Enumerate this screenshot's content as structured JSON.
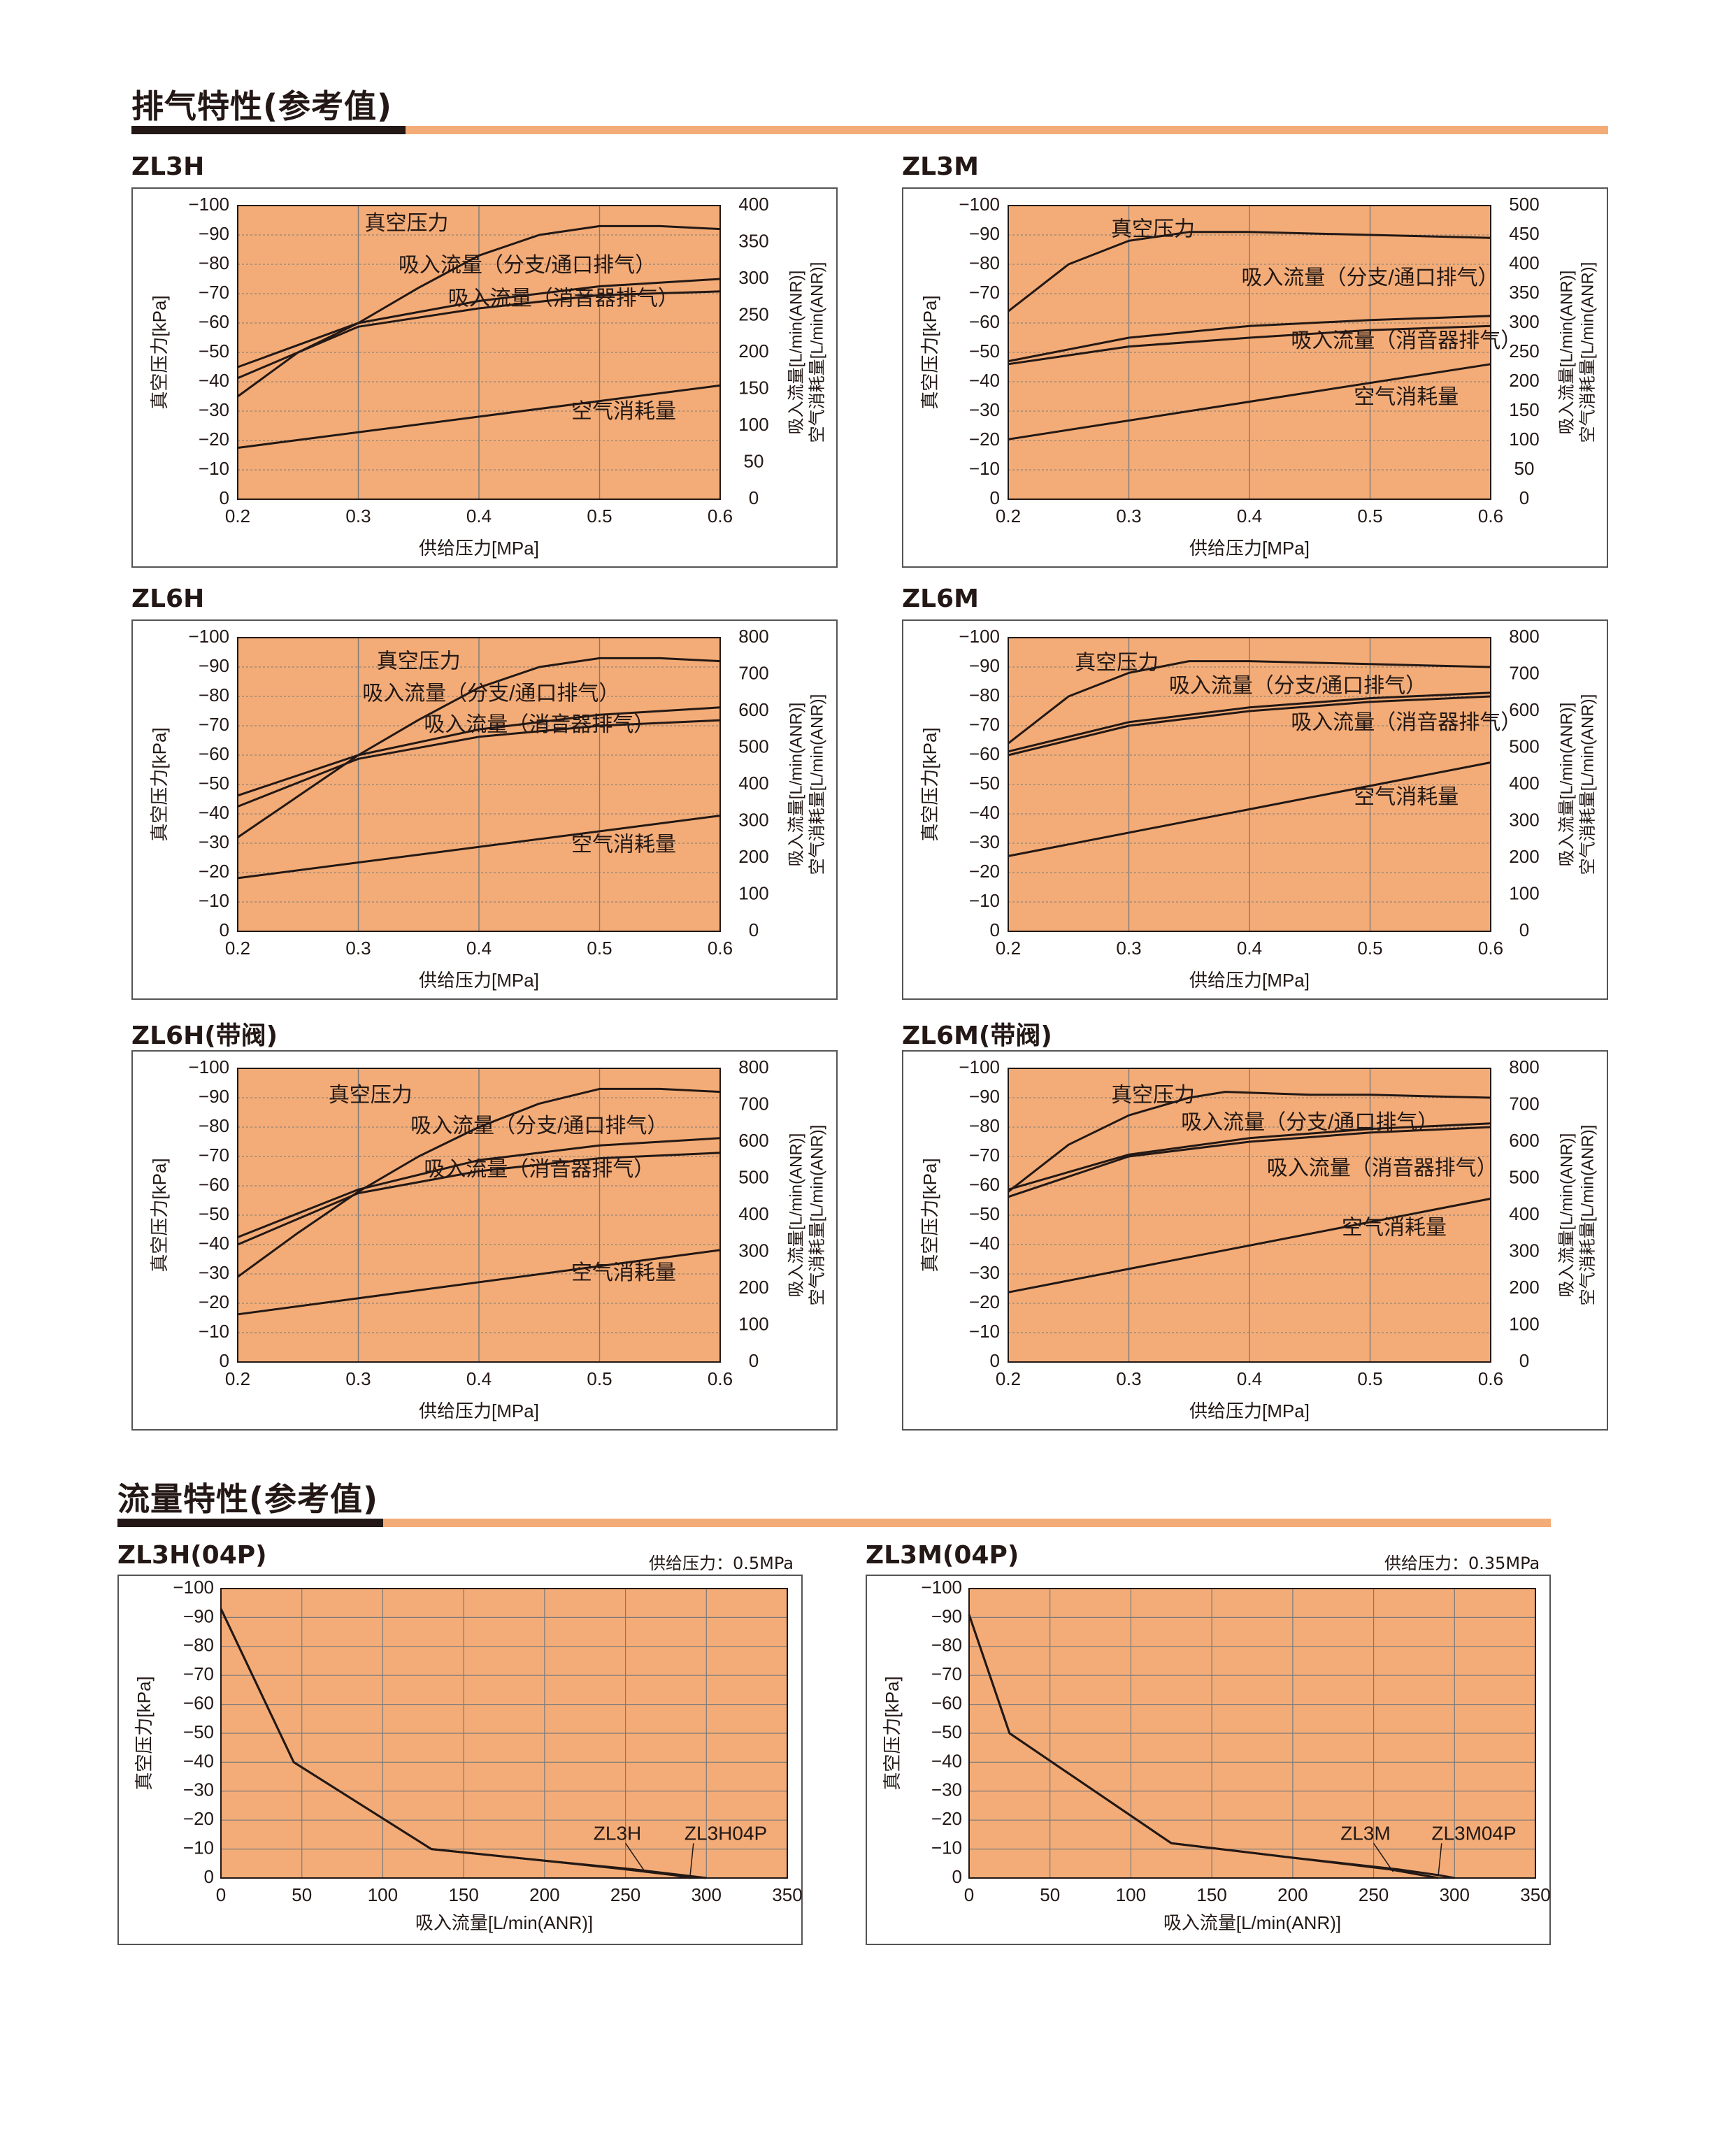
{
  "sections": {
    "exhaust_title": "排气特性(参考值)",
    "flow_title": "流量特性(参考值)"
  },
  "colors": {
    "plot_bg": "#f3ac77",
    "line": "#231815",
    "grid": "#7a7a7a",
    "accent_rule": "#f3ac77"
  },
  "chart_data": [
    {
      "id": "zl3h",
      "type": "line",
      "label": "ZL3H",
      "xlabel": "供给压力[MPa]",
      "ylabel": "真空压力[kPa]",
      "y2label_1": "吸入流量[L/min(ANR)]",
      "y2label_2": "空气消耗量[L/min(ANR)]",
      "x_ticks": [
        "0.2",
        "0.3",
        "0.4",
        "0.5",
        "0.6"
      ],
      "xlim": [
        0.2,
        0.6
      ],
      "y_ticks": [
        "−100",
        "−90",
        "−80",
        "−70",
        "−60",
        "−50",
        "−40",
        "−30",
        "−20",
        "−10",
        "0"
      ],
      "ylim": [
        0,
        100
      ],
      "y2_ticks": [
        "400",
        "350",
        "300",
        "250",
        "200",
        "150",
        "100",
        "50",
        "0"
      ],
      "y2lim": [
        0,
        400
      ],
      "series": [
        {
          "name": "真空压力",
          "axis": "left",
          "x": [
            0.2,
            0.25,
            0.3,
            0.35,
            0.4,
            0.45,
            0.5,
            0.55,
            0.6
          ],
          "y": [
            35,
            50,
            60,
            72,
            83,
            90,
            93,
            93,
            92
          ]
        },
        {
          "name": "吸入流量（分支/通口排气）",
          "axis": "right",
          "x": [
            0.2,
            0.3,
            0.4,
            0.5,
            0.6
          ],
          "y": [
            180,
            240,
            270,
            290,
            300
          ]
        },
        {
          "name": "吸入流量（消音器排气）",
          "axis": "right",
          "x": [
            0.2,
            0.3,
            0.4,
            0.5,
            0.6
          ],
          "y": [
            165,
            235,
            260,
            278,
            283
          ]
        },
        {
          "name": "空气消耗量",
          "axis": "right",
          "x": [
            0.2,
            0.6
          ],
          "y": [
            70,
            155
          ]
        }
      ]
    },
    {
      "id": "zl3m",
      "type": "line",
      "label": "ZL3M",
      "xlabel": "供给压力[MPa]",
      "ylabel": "真空压力[kPa]",
      "y2label_1": "吸入流量[L/min(ANR)]",
      "y2label_2": "空气消耗量[L/min(ANR)]",
      "x_ticks": [
        "0.2",
        "0.3",
        "0.4",
        "0.5",
        "0.6"
      ],
      "xlim": [
        0.2,
        0.6
      ],
      "y_ticks": [
        "−100",
        "−90",
        "−80",
        "−70",
        "−60",
        "−50",
        "−40",
        "−30",
        "−20",
        "−10",
        "0"
      ],
      "ylim": [
        0,
        100
      ],
      "y2_ticks": [
        "500",
        "450",
        "400",
        "350",
        "300",
        "250",
        "200",
        "150",
        "100",
        "50",
        "0"
      ],
      "y2lim": [
        0,
        500
      ],
      "series": [
        {
          "name": "真空压力",
          "axis": "left",
          "x": [
            0.2,
            0.25,
            0.3,
            0.35,
            0.4,
            0.5,
            0.6
          ],
          "y": [
            64,
            80,
            88,
            91,
            91,
            90,
            89
          ]
        },
        {
          "name": "吸入流量（分支/通口排气）",
          "axis": "right",
          "x": [
            0.2,
            0.3,
            0.4,
            0.5,
            0.6
          ],
          "y": [
            235,
            275,
            295,
            305,
            312
          ]
        },
        {
          "name": "吸入流量（消音器排气）",
          "axis": "right",
          "x": [
            0.2,
            0.3,
            0.4,
            0.5,
            0.6
          ],
          "y": [
            230,
            260,
            275,
            288,
            295
          ]
        },
        {
          "name": "空气消耗量",
          "axis": "right",
          "x": [
            0.2,
            0.6
          ],
          "y": [
            102,
            230
          ]
        }
      ]
    },
    {
      "id": "zl6h",
      "type": "line",
      "label": "ZL6H",
      "xlabel": "供给压力[MPa]",
      "ylabel": "真空压力[kPa]",
      "y2label_1": "吸入流量[L/min(ANR)]",
      "y2label_2": "空气消耗量[L/min(ANR)]",
      "x_ticks": [
        "0.2",
        "0.3",
        "0.4",
        "0.5",
        "0.6"
      ],
      "xlim": [
        0.2,
        0.6
      ],
      "y_ticks": [
        "−100",
        "−90",
        "−80",
        "−70",
        "−60",
        "−50",
        "−40",
        "−30",
        "−20",
        "−10",
        "0"
      ],
      "ylim": [
        0,
        100
      ],
      "y2_ticks": [
        "800",
        "700",
        "600",
        "500",
        "400",
        "300",
        "200",
        "100",
        "0"
      ],
      "y2lim": [
        0,
        800
      ],
      "series": [
        {
          "name": "真空压力",
          "axis": "left",
          "x": [
            0.2,
            0.25,
            0.3,
            0.35,
            0.4,
            0.45,
            0.5,
            0.55,
            0.6
          ],
          "y": [
            32,
            46,
            60,
            72,
            83,
            90,
            93,
            93,
            92
          ]
        },
        {
          "name": "吸入流量（分支/通口排气）",
          "axis": "right",
          "x": [
            0.2,
            0.3,
            0.4,
            0.5,
            0.6
          ],
          "y": [
            370,
            480,
            550,
            590,
            610
          ]
        },
        {
          "name": "吸入流量（消音器排气）",
          "axis": "right",
          "x": [
            0.2,
            0.3,
            0.4,
            0.5,
            0.6
          ],
          "y": [
            340,
            470,
            530,
            560,
            575
          ]
        },
        {
          "name": "空气消耗量",
          "axis": "right",
          "x": [
            0.2,
            0.6
          ],
          "y": [
            145,
            315
          ]
        }
      ]
    },
    {
      "id": "zl6m",
      "type": "line",
      "label": "ZL6M",
      "xlabel": "供给压力[MPa]",
      "ylabel": "真空压力[kPa]",
      "y2label_1": "吸入流量[L/min(ANR)]",
      "y2label_2": "空气消耗量[L/min(ANR)]",
      "x_ticks": [
        "0.2",
        "0.3",
        "0.4",
        "0.5",
        "0.6"
      ],
      "xlim": [
        0.2,
        0.6
      ],
      "y_ticks": [
        "−100",
        "−90",
        "−80",
        "−70",
        "−60",
        "−50",
        "−40",
        "−30",
        "−20",
        "−10",
        "0"
      ],
      "ylim": [
        0,
        100
      ],
      "y2_ticks": [
        "800",
        "700",
        "600",
        "500",
        "400",
        "300",
        "200",
        "100",
        "0"
      ],
      "y2lim": [
        0,
        800
      ],
      "series": [
        {
          "name": "真空压力",
          "axis": "left",
          "x": [
            0.2,
            0.25,
            0.3,
            0.35,
            0.4,
            0.5,
            0.6
          ],
          "y": [
            64,
            80,
            88,
            92,
            92,
            91,
            90
          ]
        },
        {
          "name": "吸入流量（分支/通口排气）",
          "axis": "right",
          "x": [
            0.2,
            0.3,
            0.4,
            0.5,
            0.6
          ],
          "y": [
            490,
            570,
            610,
            635,
            650
          ]
        },
        {
          "name": "吸入流量（消音器排气）",
          "axis": "right",
          "x": [
            0.2,
            0.3,
            0.4,
            0.5,
            0.6
          ],
          "y": [
            480,
            560,
            600,
            625,
            640
          ]
        },
        {
          "name": "空气消耗量",
          "axis": "right",
          "x": [
            0.2,
            0.6
          ],
          "y": [
            205,
            460
          ]
        }
      ]
    },
    {
      "id": "zl6h_valve",
      "type": "line",
      "label": "ZL6H(带阀)",
      "xlabel": "供给压力[MPa]",
      "ylabel": "真空压力[kPa]",
      "y2label_1": "吸入流量[L/min(ANR)]",
      "y2label_2": "空气消耗量[L/min(ANR)]",
      "x_ticks": [
        "0.2",
        "0.3",
        "0.4",
        "0.5",
        "0.6"
      ],
      "xlim": [
        0.2,
        0.6
      ],
      "y_ticks": [
        "−100",
        "−90",
        "−80",
        "−70",
        "−60",
        "−50",
        "−40",
        "−30",
        "−20",
        "−10",
        "0"
      ],
      "ylim": [
        0,
        100
      ],
      "y2_ticks": [
        "800",
        "700",
        "600",
        "500",
        "400",
        "300",
        "200",
        "100",
        "0"
      ],
      "y2lim": [
        0,
        800
      ],
      "series": [
        {
          "name": "真空压力",
          "axis": "left",
          "x": [
            0.2,
            0.25,
            0.3,
            0.35,
            0.4,
            0.45,
            0.5,
            0.55,
            0.6
          ],
          "y": [
            29,
            44,
            58,
            70,
            80,
            88,
            93,
            93,
            92
          ]
        },
        {
          "name": "吸入流量（分支/通口排气）",
          "axis": "right",
          "x": [
            0.2,
            0.3,
            0.4,
            0.5,
            0.6
          ],
          "y": [
            340,
            470,
            550,
            590,
            610
          ]
        },
        {
          "name": "吸入流量（消音器排气）",
          "axis": "right",
          "x": [
            0.2,
            0.3,
            0.4,
            0.5,
            0.6
          ],
          "y": [
            320,
            460,
            520,
            555,
            570
          ]
        },
        {
          "name": "空气消耗量",
          "axis": "right",
          "x": [
            0.2,
            0.6
          ],
          "y": [
            130,
            305
          ]
        }
      ]
    },
    {
      "id": "zl6m_valve",
      "type": "line",
      "label": "ZL6M(带阀)",
      "xlabel": "供给压力[MPa]",
      "ylabel": "真空压力[kPa]",
      "y2label_1": "吸入流量[L/min(ANR)]",
      "y2label_2": "空气消耗量[L/min(ANR)]",
      "x_ticks": [
        "0.2",
        "0.3",
        "0.4",
        "0.5",
        "0.6"
      ],
      "xlim": [
        0.2,
        0.6
      ],
      "y_ticks": [
        "−100",
        "−90",
        "−80",
        "−70",
        "−60",
        "−50",
        "−40",
        "−30",
        "−20",
        "−10",
        "0"
      ],
      "ylim": [
        0,
        100
      ],
      "y2_ticks": [
        "800",
        "700",
        "600",
        "500",
        "400",
        "300",
        "200",
        "100",
        "0"
      ],
      "y2lim": [
        0,
        800
      ],
      "series": [
        {
          "name": "真空压力",
          "axis": "left",
          "x": [
            0.2,
            0.25,
            0.3,
            0.35,
            0.38,
            0.45,
            0.5,
            0.6
          ],
          "y": [
            58,
            74,
            84,
            90,
            92,
            91,
            91,
            90
          ]
        },
        {
          "name": "吸入流量（分支/通口排气）",
          "axis": "right",
          "x": [
            0.2,
            0.3,
            0.4,
            0.5,
            0.6
          ],
          "y": [
            470,
            565,
            610,
            635,
            650
          ]
        },
        {
          "name": "吸入流量（消音器排气）",
          "axis": "right",
          "x": [
            0.2,
            0.3,
            0.4,
            0.5,
            0.6
          ],
          "y": [
            450,
            560,
            600,
            625,
            640
          ]
        },
        {
          "name": "空气消耗量",
          "axis": "right",
          "x": [
            0.2,
            0.6
          ],
          "y": [
            190,
            445
          ]
        }
      ]
    },
    {
      "id": "zl3h_04p",
      "type": "line",
      "label": "ZL3H(04P)",
      "note": "供给压力：0.5MPa",
      "xlabel": "吸入流量[L/min(ANR)]",
      "ylabel": "真空压力[kPa]",
      "x_ticks": [
        "0",
        "50",
        "100",
        "150",
        "200",
        "250",
        "300",
        "350"
      ],
      "xlim": [
        0,
        350
      ],
      "y_ticks": [
        "−100",
        "−90",
        "−80",
        "−70",
        "−60",
        "−50",
        "−40",
        "−30",
        "−20",
        "−10",
        "0"
      ],
      "ylim": [
        0,
        100
      ],
      "series": [
        {
          "name": "ZL3H",
          "x": [
            0,
            45,
            130,
            200,
            250,
            280,
            290
          ],
          "y": [
            93,
            40,
            10,
            6,
            3,
            1,
            0
          ]
        },
        {
          "name": "ZL3H04P",
          "x": [
            0,
            45,
            130,
            200,
            255,
            285,
            300
          ],
          "y": [
            93,
            40,
            10,
            6,
            3,
            1,
            0
          ]
        }
      ]
    },
    {
      "id": "zl3m_04p",
      "type": "line",
      "label": "ZL3M(04P)",
      "note": "供给压力：0.35MPa",
      "xlabel": "吸入流量[L/min(ANR)]",
      "ylabel": "真空压力[kPa]",
      "x_ticks": [
        "0",
        "50",
        "100",
        "150",
        "200",
        "250",
        "300",
        "350"
      ],
      "xlim": [
        0,
        350
      ],
      "y_ticks": [
        "−100",
        "−90",
        "−80",
        "−70",
        "−60",
        "−50",
        "−40",
        "−30",
        "−20",
        "−10",
        "0"
      ],
      "ylim": [
        0,
        100
      ],
      "series": [
        {
          "name": "ZL3M",
          "x": [
            0,
            25,
            125,
            200,
            260,
            280,
            290
          ],
          "y": [
            91,
            50,
            12,
            7,
            3,
            1,
            0
          ]
        },
        {
          "name": "ZL3M04P",
          "x": [
            0,
            25,
            125,
            200,
            265,
            290,
            300
          ],
          "y": [
            91,
            50,
            12,
            7,
            3,
            1,
            0
          ]
        }
      ]
    }
  ]
}
